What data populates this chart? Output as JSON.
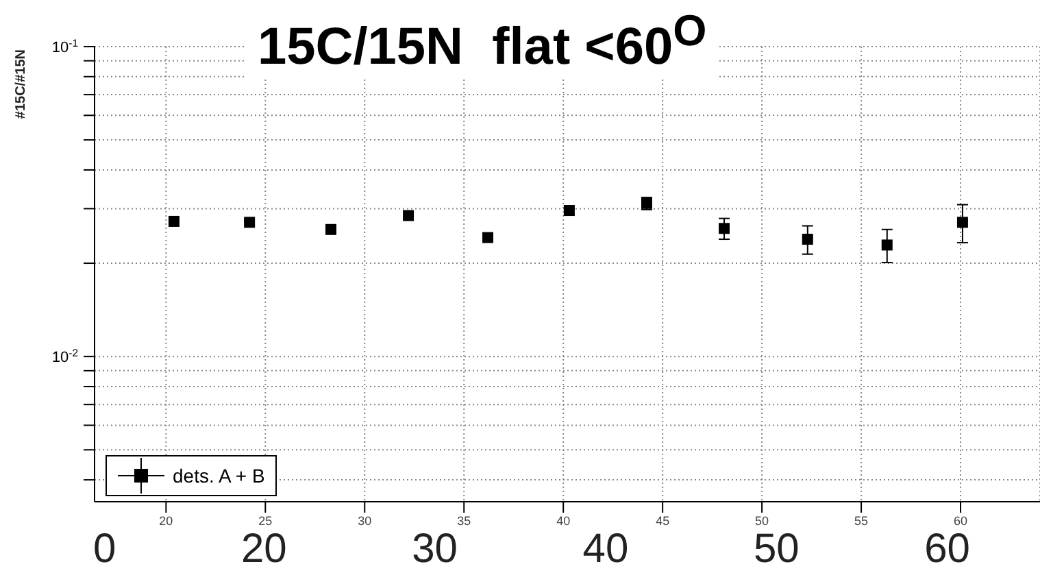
{
  "chart_data": {
    "type": "scatter",
    "title": "15C/15N  flat <60$^{O}$",
    "ylabel": "#15C/#15N",
    "x": [
      20.4,
      24.2,
      28.3,
      32.2,
      36.2,
      40.3,
      44.2,
      48.1,
      52.3,
      56.3,
      60.1
    ],
    "series": [
      {
        "name": "dets. A + B",
        "color": "#000000",
        "values": [
          0.0273,
          0.0271,
          0.0257,
          0.0285,
          0.0242,
          0.0296,
          0.0312,
          0.0259,
          0.0239,
          0.0229,
          0.0271
        ],
        "errors": [
          null,
          null,
          null,
          null,
          0.0004,
          0.001,
          0.0014,
          0.002,
          0.0025,
          0.0028,
          0.0038
        ]
      }
    ],
    "xlim": [
      16.4,
      64
    ],
    "xticks": [
      20,
      25,
      30,
      35,
      40,
      45,
      50,
      55,
      60
    ],
    "ylim": [
      0.0034,
      0.1
    ],
    "log": "y",
    "yticks": [
      {
        "value": 0.004,
        "label": null
      },
      {
        "value": 0.005,
        "label": null
      },
      {
        "value": 0.006,
        "label": null
      },
      {
        "value": 0.007,
        "label": null
      },
      {
        "value": 0.008,
        "label": null
      },
      {
        "value": 0.009,
        "label": null
      },
      {
        "value": 0.01,
        "label": "10$^{-2}$"
      },
      {
        "value": 0.02,
        "label": null
      },
      {
        "value": 0.03,
        "label": null
      },
      {
        "value": 0.04,
        "label": null
      },
      {
        "value": 0.05,
        "label": null
      },
      {
        "value": 0.06,
        "label": null
      },
      {
        "value": 0.07,
        "label": null
      },
      {
        "value": 0.08,
        "label": null
      },
      {
        "value": 0.09,
        "label": null
      },
      {
        "value": 0.1,
        "label": "10$^{-1}$"
      }
    ],
    "grid": true,
    "legend": "bottom left",
    "marker": "square",
    "annotations": [
      "0",
      "20",
      "30",
      "40",
      "50",
      "60"
    ]
  }
}
